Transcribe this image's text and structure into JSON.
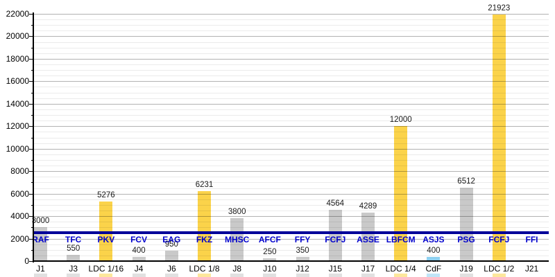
{
  "chart_data": {
    "type": "bar",
    "title": "",
    "xlabel": "",
    "ylabel": "",
    "categories": [
      "J1",
      "J3",
      "LDC 1/16",
      "J4",
      "J6",
      "LDC 1/8",
      "J8",
      "J10",
      "J12",
      "J15",
      "J17",
      "LDC 1/4",
      "CdF",
      "J19",
      "LDC 1/2",
      "J21"
    ],
    "values": [
      3000,
      550,
      5276,
      400,
      950,
      6231,
      3800,
      250,
      350,
      4564,
      4289,
      12000,
      400,
      6512,
      21923,
      null
    ],
    "team_labels": [
      "RAF",
      "TFC",
      "PKV",
      "FCV",
      "EAG",
      "FKZ",
      "MHSC",
      "AFCF",
      "FFY",
      "FCFJ",
      "ASSE",
      "LBFCM",
      "ASJS",
      "PSG",
      "FCFJ",
      "FFI"
    ],
    "bar_types": [
      "league",
      "league",
      "ldc",
      "league",
      "league",
      "ldc",
      "league",
      "league",
      "league",
      "league",
      "league",
      "ldc",
      "cdf",
      "league",
      "ldc",
      "league"
    ],
    "bottom_strips": [
      1,
      1,
      1,
      1,
      1,
      1,
      1,
      1,
      1,
      1,
      1,
      1,
      1,
      1,
      1,
      0
    ],
    "colors": {
      "league": "#C9C9C9",
      "ldc": "#FBD34A",
      "cdf": "#8DD0F0",
      "threshold_line": "#000099",
      "team_label_text": "#0000CC"
    },
    "threshold_line": {
      "value": 2500
    },
    "y_axis": {
      "min": 0,
      "max": 22000,
      "major_step": 2000,
      "minor_step": 500,
      "tick_labels": [
        "0",
        "2000",
        "4000",
        "6000",
        "8000",
        "10000",
        "12000",
        "14000",
        "16000",
        "18000",
        "20000",
        "22000"
      ]
    },
    "grid": "on",
    "legend": "none"
  }
}
